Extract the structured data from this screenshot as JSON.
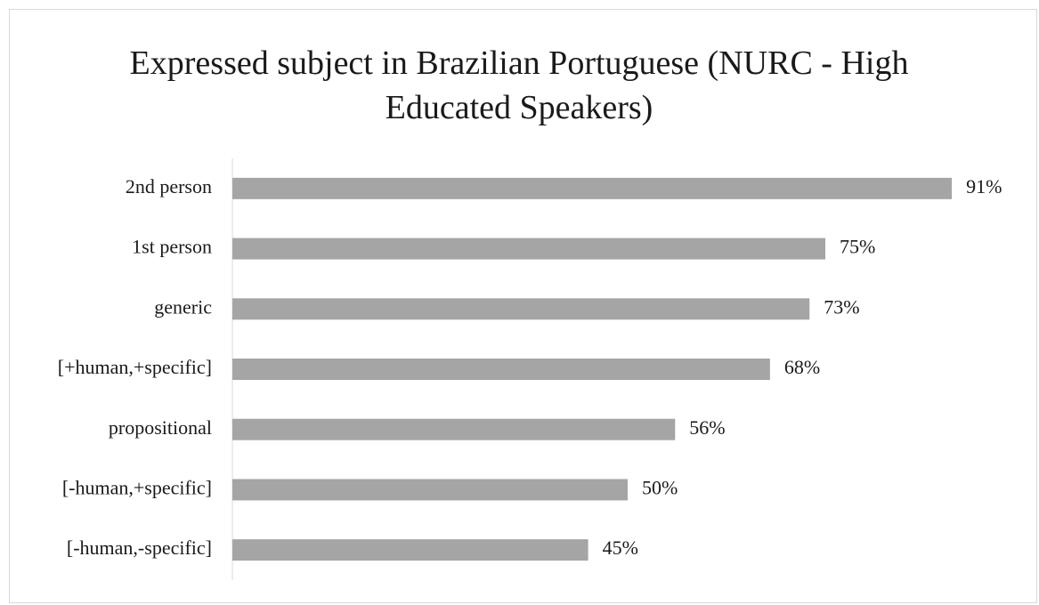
{
  "chart_data": {
    "type": "hbar",
    "title": "Expressed subject in Brazilian Portuguese (NURC - High Educated Speakers)",
    "categories": [
      "2nd person",
      "1st person",
      "generic",
      "[+human,+specific]",
      "propositional",
      "[-human,+specific]",
      "[-human,-specific]"
    ],
    "values": [
      91,
      75,
      73,
      68,
      56,
      50,
      45
    ],
    "value_labels": [
      "91%",
      "75%",
      "73%",
      "68%",
      "56%",
      "50%",
      "45%"
    ],
    "color": "#a5a5a5",
    "xlim": [
      0,
      100
    ]
  }
}
